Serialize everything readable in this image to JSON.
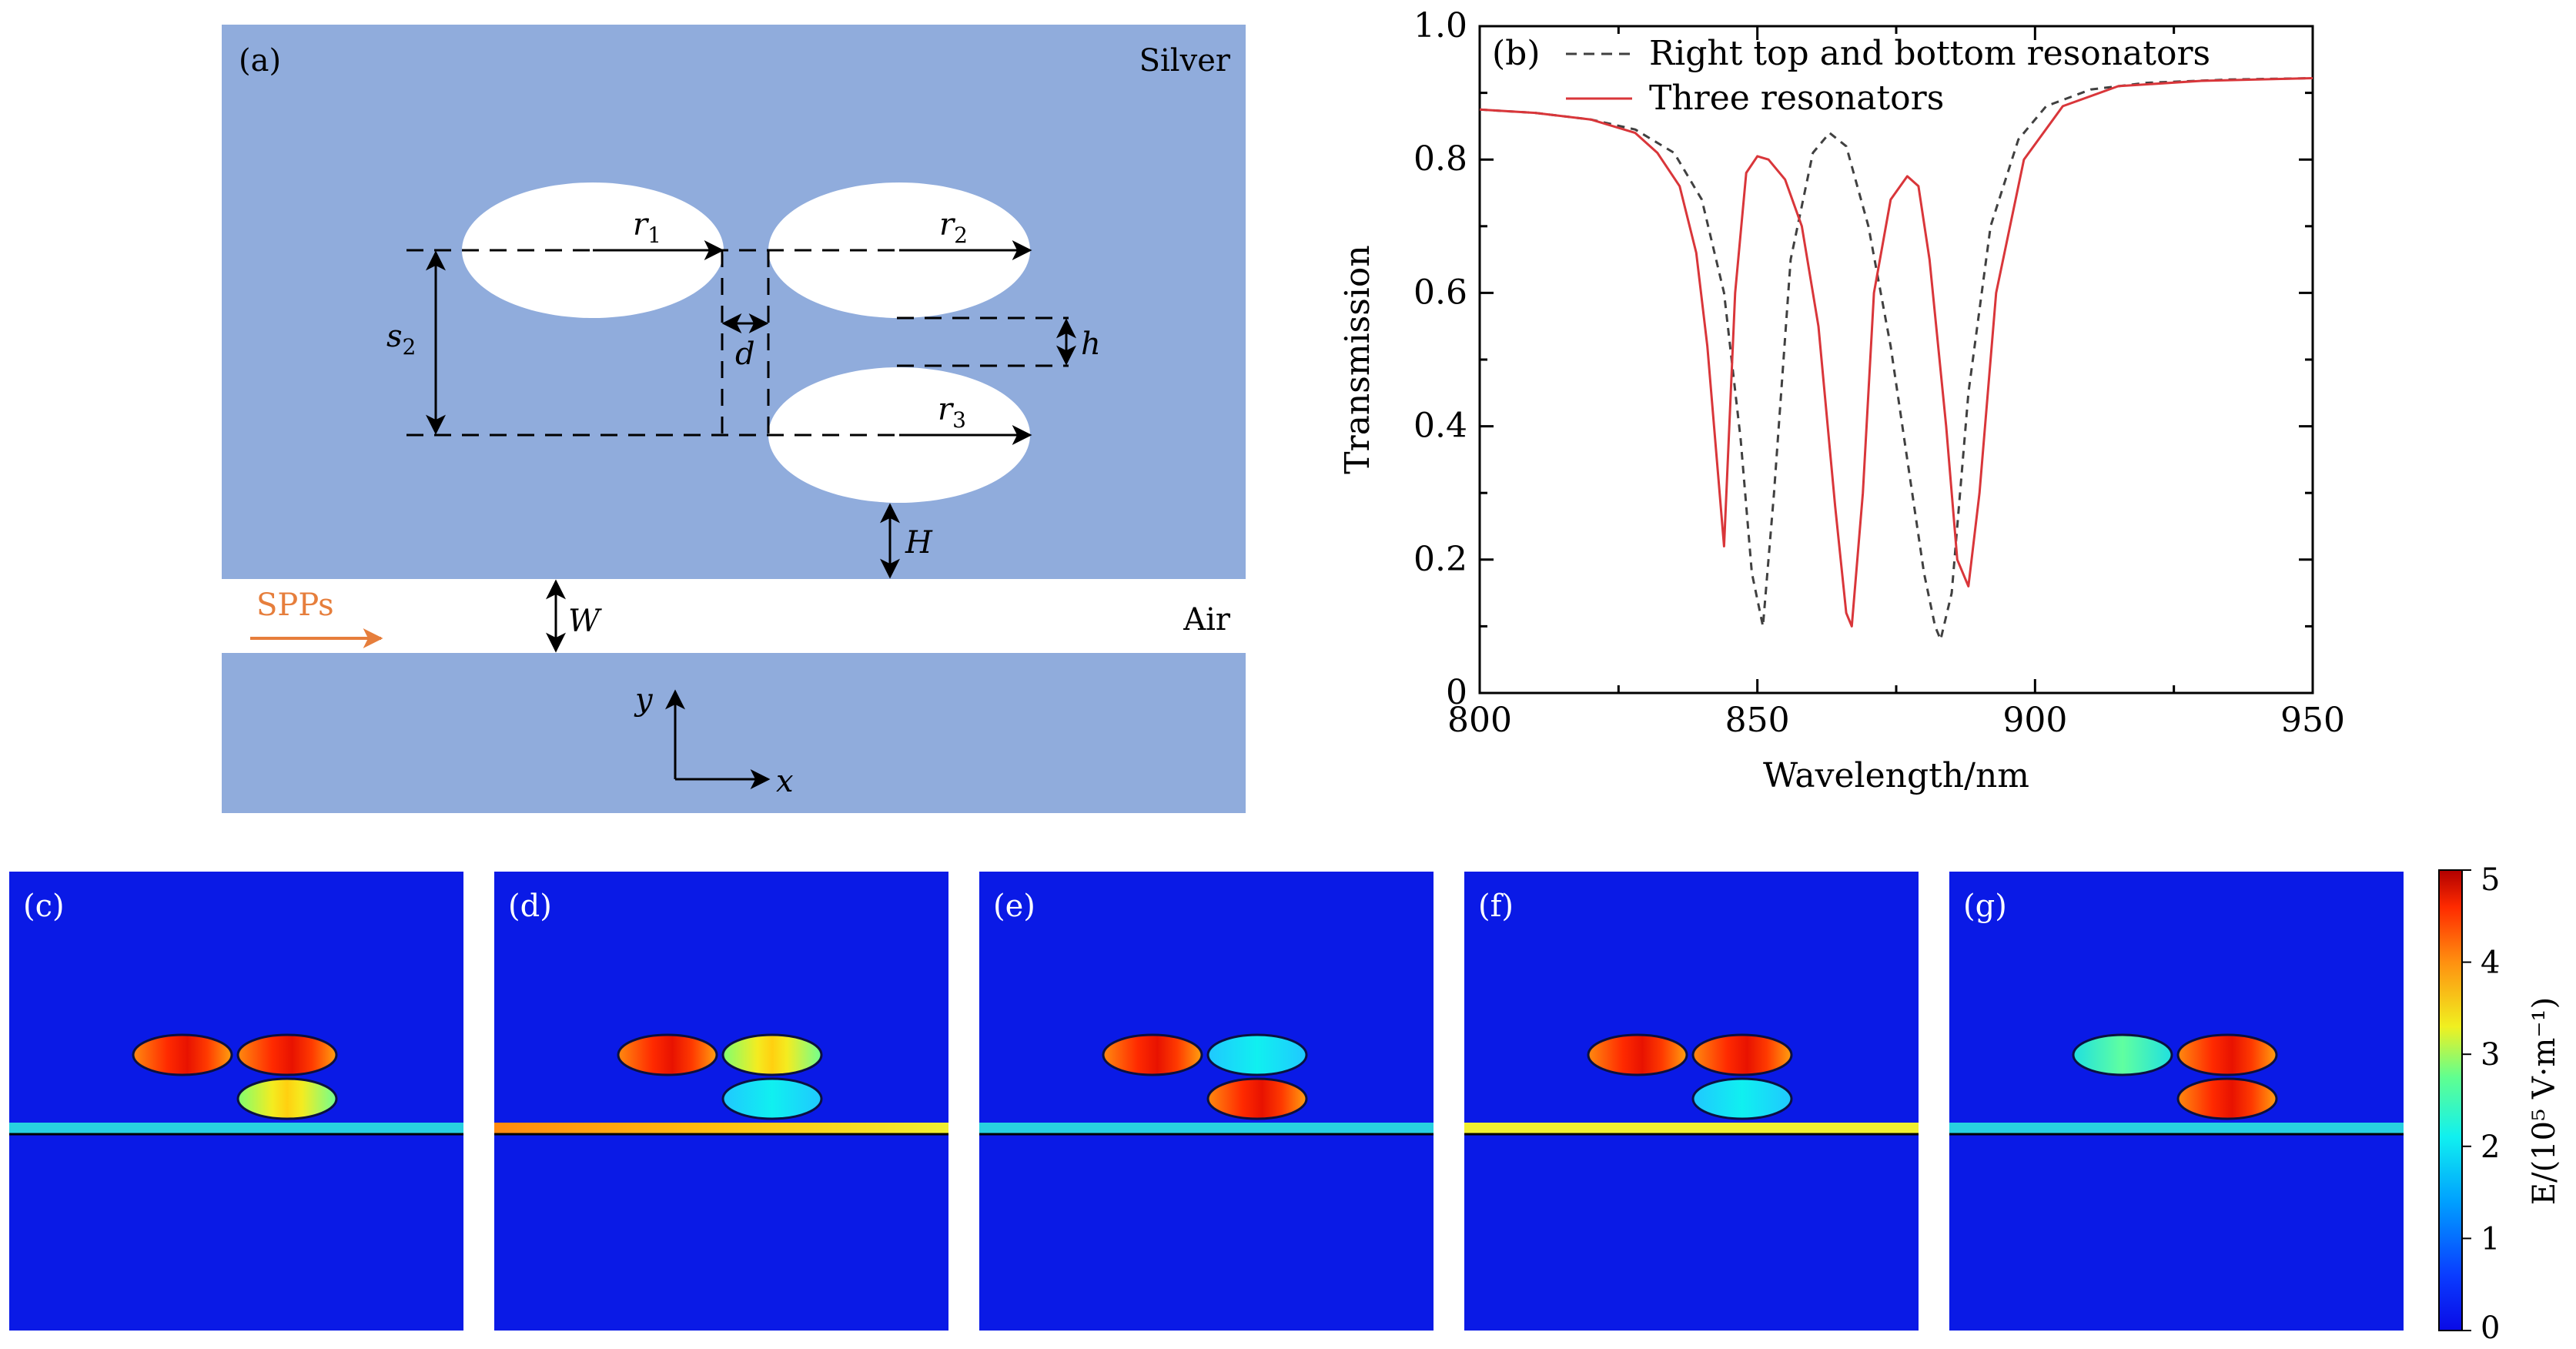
{
  "colors": {
    "silver": "#90acdc",
    "air": "#ffffff",
    "spp_arrow": "#e67e3c",
    "three_line": "#d9363a",
    "dashed_line": "#404040",
    "field_bg": "#0a1ae6"
  },
  "panel_a": {
    "label": "(a)",
    "silver_label": "Silver",
    "air_label": "Air",
    "spps_label": "SPPs",
    "r1": "r",
    "r1_sub": "1",
    "r2": "r",
    "r2_sub": "2",
    "r3": "r",
    "r3_sub": "3",
    "s2": "s",
    "s2_sub": "2",
    "d": "d",
    "h": "h",
    "H": "H",
    "W": "W",
    "axis_x": "x",
    "axis_y": "y"
  },
  "panels_field": {
    "labels": [
      "(c)",
      "(d)",
      "(e)",
      "(f)",
      "(g)"
    ],
    "colorbar_label": "E/(10⁵ V·m⁻¹)",
    "colorbar_ticks": [
      "0",
      "1",
      "2",
      "3",
      "4",
      "5"
    ],
    "colorbar_range": [
      0,
      5
    ]
  },
  "chart_data": {
    "type": "line",
    "panel_label": "(b)",
    "xlabel": "Wavelength/nm",
    "ylabel": "Transmission",
    "xlim": [
      800,
      950
    ],
    "ylim": [
      0,
      1.0
    ],
    "xticks": [
      "800",
      "850",
      "900",
      "950"
    ],
    "yticks": [
      "0",
      "0.2",
      "0.4",
      "0.6",
      "0.8",
      "1.0"
    ],
    "legend_position": "top-left",
    "series": [
      {
        "name": "Right top and bottom resonators",
        "style": "dashed",
        "x": [
          800,
          810,
          820,
          828,
          835,
          840,
          844,
          847,
          849,
          851,
          853,
          856,
          860,
          863,
          866,
          870,
          874,
          877,
          880,
          882,
          883,
          885,
          888,
          892,
          897,
          902,
          910,
          920,
          935,
          950
        ],
        "y": [
          0.875,
          0.87,
          0.86,
          0.845,
          0.81,
          0.74,
          0.6,
          0.38,
          0.18,
          0.1,
          0.3,
          0.65,
          0.81,
          0.84,
          0.82,
          0.7,
          0.52,
          0.35,
          0.18,
          0.1,
          0.08,
          0.15,
          0.45,
          0.7,
          0.83,
          0.88,
          0.905,
          0.915,
          0.92,
          0.922
        ]
      },
      {
        "name": "Three resonators",
        "style": "solid",
        "x": [
          800,
          810,
          820,
          828,
          832,
          836,
          839,
          841,
          843,
          844,
          846,
          848,
          850,
          852,
          855,
          858,
          861,
          864,
          866,
          867,
          869,
          871,
          874,
          877,
          879,
          881,
          884,
          886,
          888,
          890,
          893,
          898,
          905,
          915,
          930,
          950
        ],
        "y": [
          0.875,
          0.87,
          0.86,
          0.84,
          0.81,
          0.76,
          0.66,
          0.52,
          0.32,
          0.22,
          0.6,
          0.78,
          0.805,
          0.8,
          0.77,
          0.7,
          0.55,
          0.28,
          0.12,
          0.1,
          0.3,
          0.6,
          0.74,
          0.775,
          0.76,
          0.65,
          0.4,
          0.2,
          0.16,
          0.3,
          0.6,
          0.8,
          0.88,
          0.91,
          0.918,
          0.922
        ]
      }
    ]
  }
}
